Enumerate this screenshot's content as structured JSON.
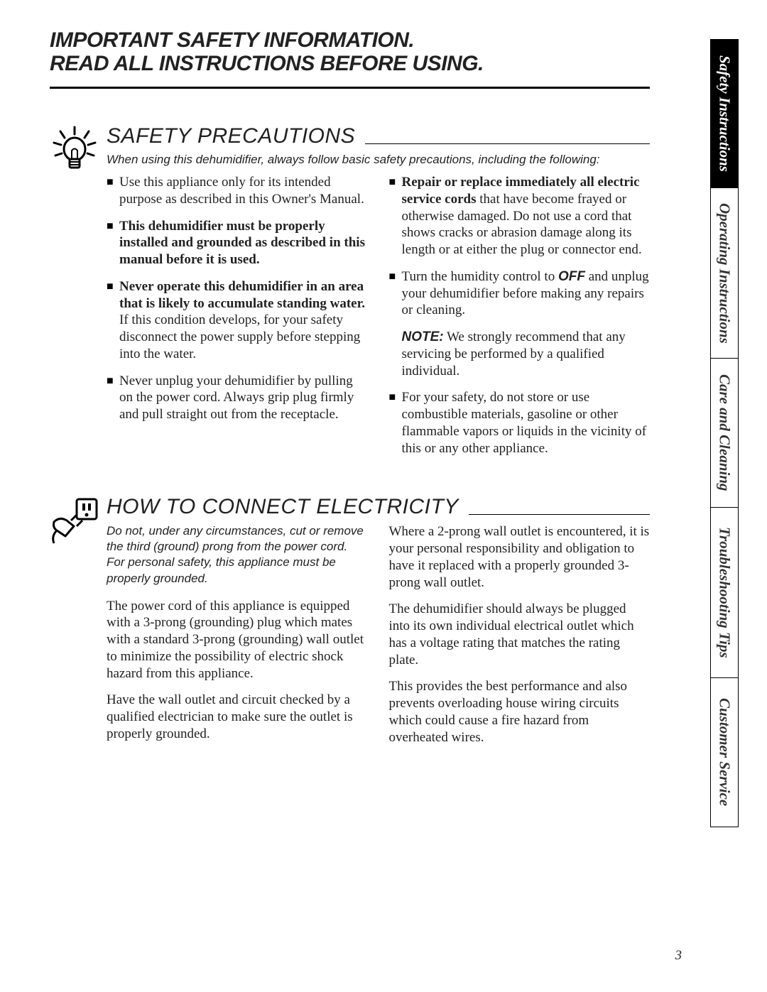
{
  "header": {
    "line1": "IMPORTANT SAFETY INFORMATION.",
    "line2": "READ ALL INSTRUCTIONS BEFORE USING."
  },
  "section1": {
    "title": "SAFETY PRECAUTIONS",
    "intro": "When using this dehumidifier, always follow basic safety precautions, including the following:",
    "left": [
      {
        "html": "Use this appliance only for its intended purpose as described in this Owner's Manual."
      },
      {
        "html": "<b>This dehumidifier must be properly installed and grounded as described in this manual before it is used.</b>"
      },
      {
        "html": "<b>Never operate this dehumidifier in an area that is likely to accumulate standing water.</b> If this condition develops, for your safety disconnect the power supply before stepping into the water."
      },
      {
        "html": "Never unplug your dehumidifier by pulling on the power cord. Always grip plug firmly and pull straight out from the receptacle."
      }
    ],
    "right": [
      {
        "html": "<b>Repair or replace immediately all electric service cords</b> that have become frayed or otherwise damaged. Do not use a cord that shows cracks or abrasion damage along its length or at either the plug or connector end."
      },
      {
        "html": "Turn the humidity control to <span class=\"arialbi\">OFF</span> and unplug your dehumidifier before making any repairs or cleaning."
      },
      {
        "note": "<span class=\"arialbi\">NOTE:</span> We strongly recommend that any servicing be performed by a qualified individual."
      },
      {
        "html": "For your safety, do not store or use combustible materials, gasoline or other flammable vapors or liquids in the vicinity of this or any other appliance."
      }
    ]
  },
  "section2": {
    "title": "HOW TO CONNECT ELECTRICITY",
    "warn": "Do not, under any circumstances, cut or remove the third (ground) prong from the power cord. For personal safety, this appliance must be properly grounded.",
    "left": [
      "The power cord of this appliance is equipped with a 3-prong (grounding) plug which mates with a standard 3-prong (grounding) wall outlet to minimize the possibility of electric shock hazard from this appliance.",
      "Have the wall outlet and circuit checked by a qualified electrician to make sure the outlet is properly grounded."
    ],
    "right": [
      "Where a 2-prong wall outlet is encountered, it is your personal responsibility and obligation to have it replaced with a properly grounded 3-prong wall outlet.",
      "The dehumidifier should always be plugged into its own individual electrical outlet which has a voltage rating that matches the rating plate.",
      "This provides the best performance and also prevents overloading house wiring circuits which could cause a fire hazard from overheated wires."
    ]
  },
  "tabs": [
    {
      "label": "Safety Instructions",
      "active": true,
      "h": "h1"
    },
    {
      "label": "Operating Instructions",
      "active": false,
      "h": "h2"
    },
    {
      "label": "Care and Cleaning",
      "active": false,
      "h": "h3"
    },
    {
      "label": "Troubleshooting Tips",
      "active": false,
      "h": "h4"
    },
    {
      "label": "Customer Service",
      "active": false,
      "h": "h5"
    }
  ],
  "page_number": "3"
}
